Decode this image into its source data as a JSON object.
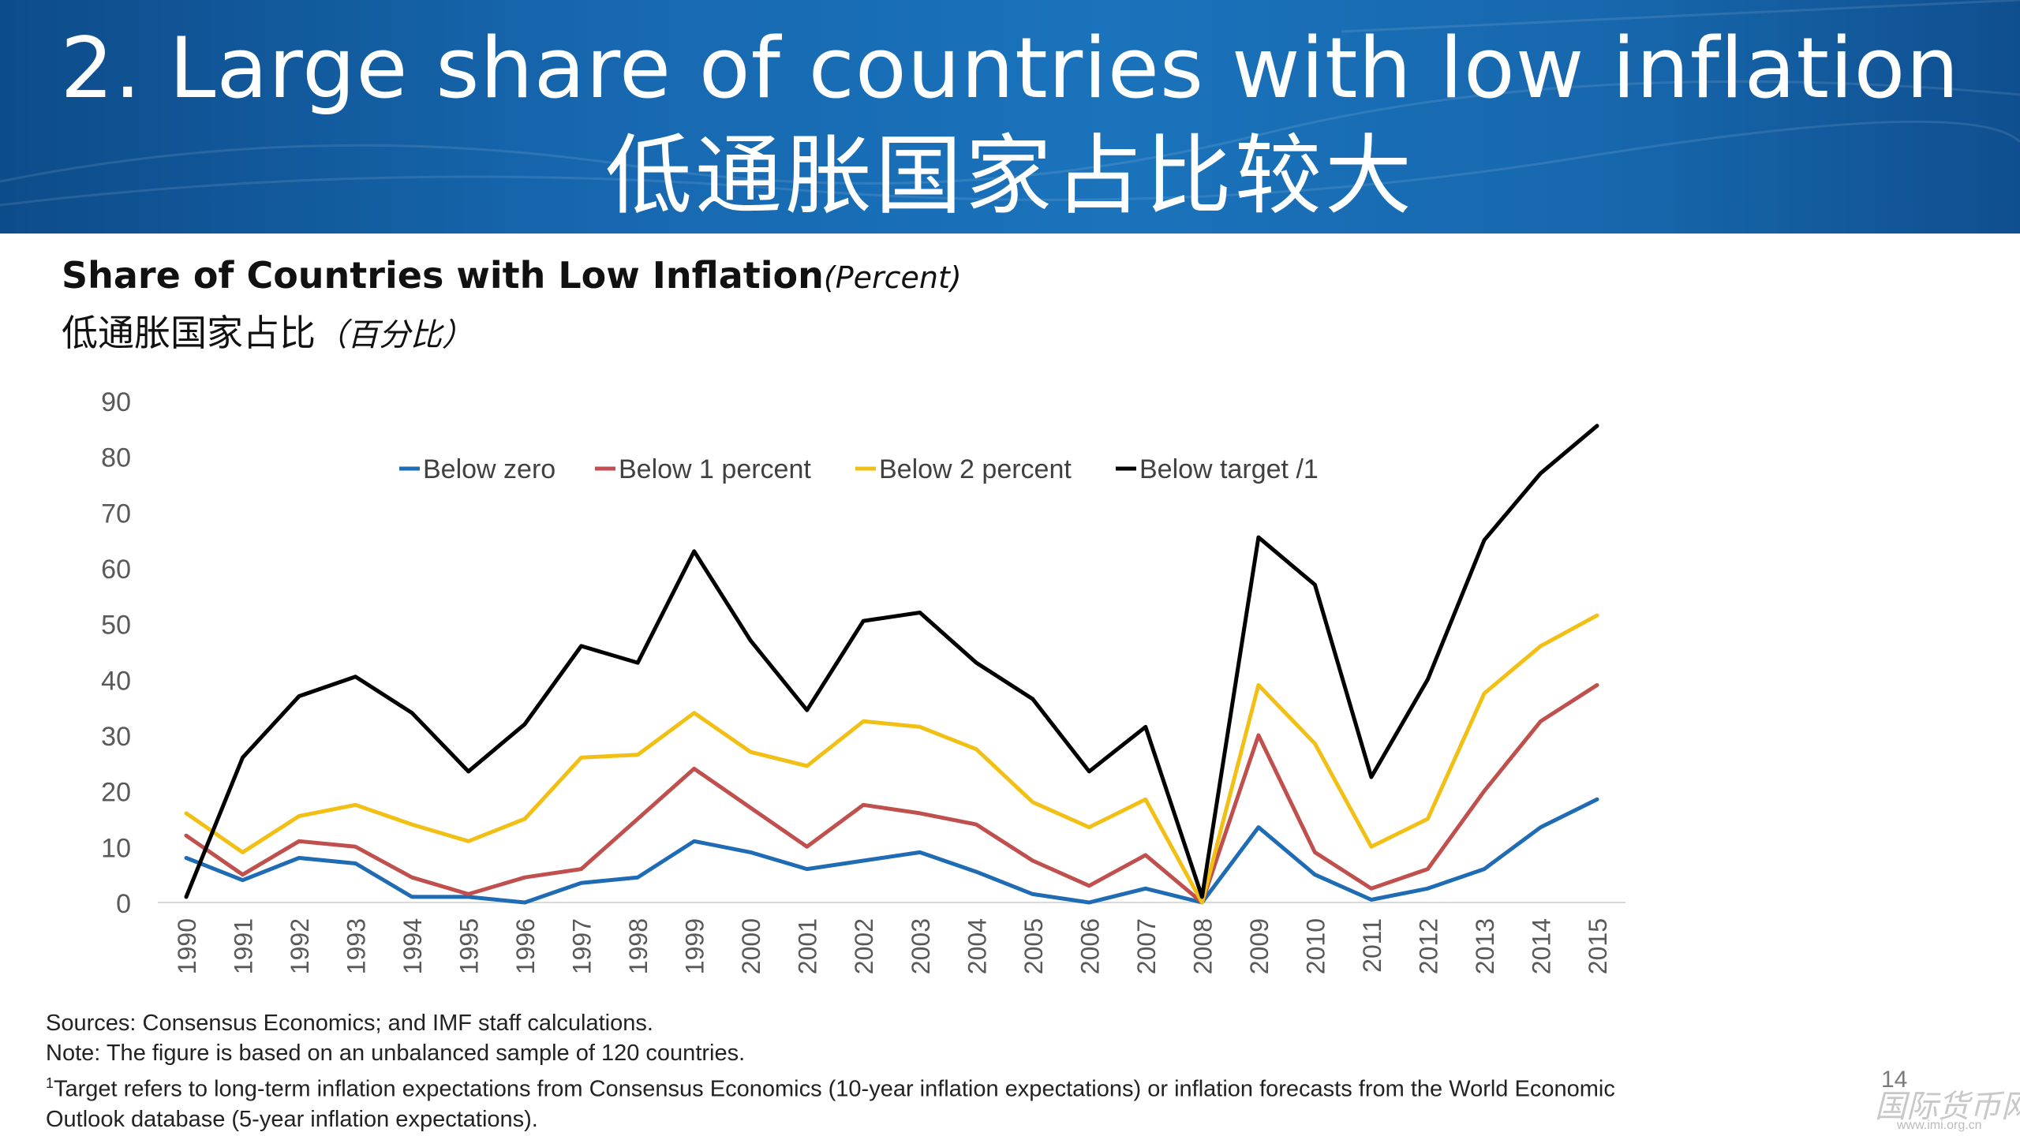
{
  "slide": {
    "title_en": "2. Large share of countries with low inflation",
    "title_zh": "低通胀国家占比较大",
    "page_number": "14",
    "watermark": "国际货币网",
    "watermark_url": "www.imi.org.cn"
  },
  "chart_heading": {
    "title": "Share of Countries with Low Inflation",
    "title_unit": "(Percent)",
    "subtitle_zh": "低通胀国家占比",
    "subtitle_unit": "（百分比）"
  },
  "notes": {
    "sources": "Sources: Consensus Economics; and IMF staff calculations.",
    "note": "Note: The figure is based on an unbalanced sample of 120 countries.",
    "footnote_marker": "1",
    "footnote_line1": "Target refers to long-term inflation expectations from Consensus Economics (10-year inflation expectations) or inflation forecasts from the World Economic",
    "footnote_line2": "Outlook database (5-year inflation expectations)."
  },
  "colors": {
    "banner": "#1a6fb5",
    "below_zero": "#1f6bb4",
    "below_1": "#c0504d",
    "below_2": "#f2c014",
    "below_target": "#000000"
  },
  "chart_data": {
    "type": "line",
    "title": "Share of Countries with Low Inflation",
    "ylabel": "",
    "xlabel": "",
    "ylim": [
      0,
      90
    ],
    "yticks": [
      0,
      10,
      20,
      30,
      40,
      50,
      60,
      70,
      80,
      90
    ],
    "grid": false,
    "legend_position": "top",
    "categories": [
      "1990",
      "1991",
      "1992",
      "1993",
      "1994",
      "1995",
      "1996",
      "1997",
      "1998",
      "1999",
      "2000",
      "2001",
      "2002",
      "2003",
      "2004",
      "2005",
      "2006",
      "2007",
      "2008",
      "2009",
      "2010",
      "2011",
      "2012",
      "2013",
      "2014",
      "2015"
    ],
    "series": [
      {
        "name": "Below zero",
        "color": "#1f6bb4",
        "values": [
          8,
          4,
          8,
          7,
          1,
          1,
          0,
          3.5,
          4.5,
          11,
          9,
          6,
          7.5,
          9,
          5.5,
          1.5,
          0,
          2.5,
          0,
          13.5,
          5,
          0.5,
          2.5,
          6,
          13.5,
          18.5
        ]
      },
      {
        "name": "Below 1 percent",
        "color": "#c0504d",
        "values": [
          12,
          5,
          11,
          10,
          4.5,
          1.5,
          4.5,
          6,
          15,
          24,
          17,
          10,
          17.5,
          16,
          14,
          7.5,
          3,
          8.5,
          0,
          30,
          9,
          2.5,
          6,
          20,
          32.5,
          39
        ]
      },
      {
        "name": "Below 2 percent",
        "color": "#f2c014",
        "values": [
          16,
          9,
          15.5,
          17.5,
          14,
          11,
          15,
          26,
          26.5,
          34,
          27,
          24.5,
          32.5,
          31.5,
          27.5,
          18,
          13.5,
          18.5,
          0,
          39,
          28.5,
          10,
          15,
          37.5,
          46,
          51.5
        ]
      },
      {
        "name": "Below target /1",
        "color": "#000000",
        "values": [
          1,
          26,
          37,
          40.5,
          34,
          23.5,
          32,
          46,
          43,
          63,
          47,
          34.5,
          50.5,
          52,
          43,
          36.5,
          23.5,
          31.5,
          1,
          65.5,
          57,
          22.5,
          40,
          65,
          77,
          85.5
        ]
      }
    ]
  }
}
